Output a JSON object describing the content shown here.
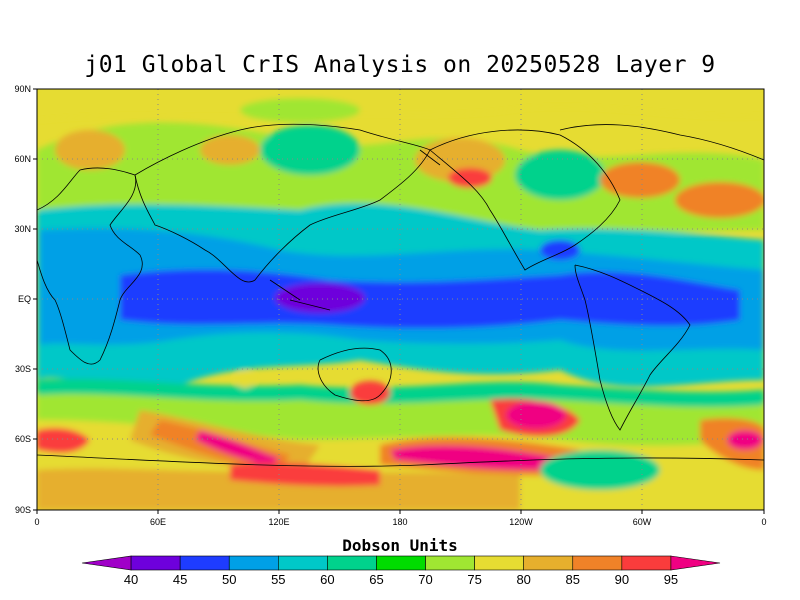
{
  "title": "j01 Global CrIS Analysis on 20250528 Layer 9",
  "map": {
    "y_ticks": [
      "90N",
      "60N",
      "30N",
      "EQ",
      "30S",
      "60S",
      "90S"
    ],
    "x_ticks": [
      "0",
      "60E",
      "120E",
      "180",
      "120W",
      "60W",
      "0"
    ],
    "grid": "dotted"
  },
  "colorbar": {
    "title": "Dobson Units",
    "labels": [
      "40",
      "45",
      "50",
      "55",
      "60",
      "65",
      "70",
      "75",
      "80",
      "85",
      "90",
      "95"
    ],
    "colors": [
      "#a000c8",
      "#6e00dc",
      "#1e3cff",
      "#00a0e6",
      "#00c8c8",
      "#00d28c",
      "#00dc00",
      "#a0e632",
      "#e6dc32",
      "#e6af2d",
      "#f08228",
      "#fa3c3c",
      "#f00082"
    ]
  },
  "colors": {
    "coast": "#000000",
    "grid": "#888888"
  }
}
